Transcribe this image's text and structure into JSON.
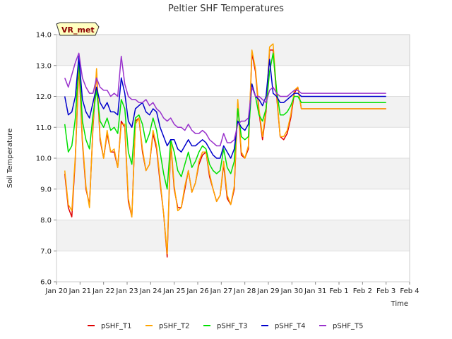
{
  "chart_data": {
    "type": "line",
    "title": "Peltier SHF Temperatures",
    "xlabel": "Time",
    "ylabel": "Soil Temperature",
    "badge": "VR_met",
    "ylim": [
      6.0,
      14.0
    ],
    "yticks": [
      "6.0",
      "7.0",
      "8.0",
      "9.0",
      "10.0",
      "11.0",
      "12.0",
      "13.0",
      "14.0"
    ],
    "xlim": [
      0,
      15
    ],
    "xticks": [
      "Jan 20",
      "Jan 21",
      "Jan 22",
      "Jan 23",
      "Jan 24",
      "Jan 25",
      "Jan 26",
      "Jan 27",
      "Jan 28",
      "Jan 29",
      "Jan 30",
      "Jan 31",
      "Feb 1",
      "Feb 2",
      "Feb 3",
      "Feb 4"
    ],
    "x": [
      0.35,
      0.5,
      0.65,
      0.8,
      0.95,
      1.1,
      1.25,
      1.4,
      1.55,
      1.7,
      1.85,
      2.0,
      2.15,
      2.3,
      2.45,
      2.6,
      2.75,
      2.9,
      3.05,
      3.2,
      3.35,
      3.5,
      3.65,
      3.8,
      3.95,
      4.1,
      4.25,
      4.4,
      4.55,
      4.7,
      4.85,
      5.0,
      5.15,
      5.3,
      5.45,
      5.6,
      5.75,
      5.9,
      6.05,
      6.2,
      6.35,
      6.5,
      6.65,
      6.8,
      6.95,
      7.1,
      7.25,
      7.4,
      7.55,
      7.7,
      7.85,
      8.0,
      8.15,
      8.3,
      8.45,
      8.6,
      8.75,
      8.9,
      9.05,
      9.2,
      9.35,
      9.5,
      9.65,
      9.8,
      9.95,
      10.1,
      10.25,
      10.4,
      10.55,
      10.7,
      10.85,
      11.0,
      11.15,
      11.3,
      11.45,
      11.6,
      11.75,
      11.9,
      12.05,
      12.2,
      12.35,
      12.5,
      12.65,
      12.8,
      12.95,
      13.1,
      13.25,
      13.4,
      13.55,
      13.7,
      13.85,
      14.0
    ],
    "series": [
      {
        "name": "pSHF_T1",
        "color": "#e00000",
        "values": [
          9.5,
          8.4,
          8.1,
          10.0,
          13.0,
          10.5,
          9.0,
          8.5,
          11.0,
          12.8,
          10.6,
          10.0,
          10.8,
          10.2,
          10.2,
          9.7,
          11.2,
          11.0,
          8.6,
          8.1,
          11.2,
          11.3,
          10.2,
          9.6,
          9.8,
          10.8,
          10.3,
          9.2,
          8.2,
          6.8,
          10.5,
          9.0,
          8.4,
          8.4,
          9.0,
          9.6,
          8.9,
          9.2,
          9.8,
          10.1,
          10.2,
          9.4,
          9.0,
          8.6,
          8.8,
          9.8,
          8.7,
          8.5,
          9.0,
          11.8,
          10.1,
          10.0,
          10.3,
          13.4,
          12.8,
          11.5,
          10.6,
          11.5,
          13.5,
          13.5,
          12.0,
          10.7,
          10.6,
          10.8,
          11.3,
          12.1,
          12.3,
          11.6,
          11.6,
          11.6,
          11.6,
          11.6,
          11.6,
          11.6,
          11.6,
          11.6,
          11.6,
          11.6,
          11.6,
          11.6,
          11.6,
          11.6,
          11.6,
          11.6,
          11.6,
          11.6,
          11.6,
          11.6,
          11.6,
          11.6,
          11.6,
          11.6
        ]
      },
      {
        "name": "pSHF_T2",
        "color": "#ffa500",
        "values": [
          9.6,
          8.5,
          8.3,
          10.1,
          13.1,
          10.6,
          9.1,
          8.4,
          11.1,
          12.9,
          10.7,
          10.0,
          10.9,
          10.2,
          10.3,
          9.7,
          11.1,
          11.1,
          8.7,
          8.1,
          11.1,
          11.3,
          10.3,
          9.6,
          9.8,
          10.9,
          10.4,
          9.3,
          8.2,
          6.9,
          10.6,
          9.1,
          8.3,
          8.4,
          9.1,
          9.6,
          8.9,
          9.2,
          9.9,
          10.2,
          10.2,
          9.5,
          9.0,
          8.6,
          8.8,
          9.9,
          8.8,
          8.5,
          9.1,
          11.9,
          10.2,
          10.0,
          10.4,
          13.5,
          12.9,
          11.6,
          10.7,
          11.6,
          13.6,
          13.7,
          12.1,
          10.7,
          10.7,
          10.9,
          11.4,
          12.2,
          12.3,
          11.6,
          11.6,
          11.6,
          11.6,
          11.6,
          11.6,
          11.6,
          11.6,
          11.6,
          11.6,
          11.6,
          11.6,
          11.6,
          11.6,
          11.6,
          11.6,
          11.6,
          11.6,
          11.6,
          11.6,
          11.6,
          11.6,
          11.6,
          11.6,
          11.6
        ]
      },
      {
        "name": "pSHF_T3",
        "color": "#00e000",
        "values": [
          11.1,
          10.2,
          10.4,
          11.3,
          13.2,
          11.2,
          10.6,
          10.3,
          11.4,
          12.2,
          11.2,
          11.0,
          11.3,
          10.9,
          11.0,
          10.8,
          11.9,
          11.6,
          10.2,
          9.8,
          11.3,
          11.4,
          11.1,
          10.5,
          10.8,
          11.3,
          10.9,
          10.2,
          9.5,
          9.0,
          10.6,
          10.2,
          9.6,
          9.4,
          9.8,
          10.2,
          9.7,
          9.9,
          10.2,
          10.4,
          10.3,
          9.8,
          9.6,
          9.5,
          9.6,
          10.3,
          9.7,
          9.5,
          9.9,
          11.6,
          10.7,
          10.6,
          10.7,
          12.4,
          12.0,
          11.4,
          11.2,
          11.6,
          12.8,
          13.4,
          12.2,
          11.4,
          11.4,
          11.5,
          11.7,
          12.0,
          12.0,
          11.8,
          11.8,
          11.8,
          11.8,
          11.8,
          11.8,
          11.8,
          11.8,
          11.8,
          11.8,
          11.8,
          11.8,
          11.8,
          11.8,
          11.8,
          11.8,
          11.8,
          11.8,
          11.8,
          11.8,
          11.8,
          11.8,
          11.8,
          11.8,
          11.8
        ]
      },
      {
        "name": "pSHF_T4",
        "color": "#0000cc",
        "values": [
          12.0,
          11.4,
          11.5,
          12.0,
          13.3,
          11.9,
          11.5,
          11.3,
          11.8,
          12.3,
          11.8,
          11.6,
          11.8,
          11.5,
          11.5,
          11.4,
          12.6,
          12.1,
          11.2,
          11.0,
          11.6,
          11.7,
          11.8,
          11.5,
          11.4,
          11.6,
          11.5,
          11.0,
          10.7,
          10.4,
          10.6,
          10.6,
          10.3,
          10.2,
          10.4,
          10.6,
          10.4,
          10.4,
          10.5,
          10.6,
          10.5,
          10.3,
          10.1,
          10.0,
          10.0,
          10.4,
          10.2,
          10.0,
          10.3,
          11.2,
          11.0,
          10.9,
          11.1,
          12.4,
          12.0,
          11.9,
          11.7,
          12.0,
          13.2,
          12.1,
          12.0,
          11.8,
          11.8,
          11.9,
          12.0,
          12.1,
          12.1,
          12.0,
          12.0,
          12.0,
          12.0,
          12.0,
          12.0,
          12.0,
          12.0,
          12.0,
          12.0,
          12.0,
          12.0,
          12.0,
          12.0,
          12.0,
          12.0,
          12.0,
          12.0,
          12.0,
          12.0,
          12.0,
          12.0,
          12.0,
          12.0,
          12.0
        ]
      },
      {
        "name": "pSHF_T5",
        "color": "#9932cc",
        "values": [
          12.6,
          12.3,
          12.7,
          13.1,
          13.4,
          12.6,
          12.3,
          12.1,
          12.1,
          12.6,
          12.3,
          12.2,
          12.2,
          12.0,
          12.1,
          12.0,
          13.3,
          12.4,
          12.0,
          11.9,
          11.9,
          11.8,
          11.8,
          11.9,
          11.7,
          11.8,
          11.6,
          11.5,
          11.3,
          11.2,
          11.3,
          11.1,
          11.0,
          11.0,
          10.9,
          11.1,
          10.9,
          10.8,
          10.8,
          10.9,
          10.8,
          10.6,
          10.5,
          10.4,
          10.4,
          10.8,
          10.5,
          10.5,
          10.6,
          11.1,
          11.2,
          11.2,
          11.3,
          12.3,
          12.0,
          12.0,
          11.9,
          11.8,
          12.2,
          12.3,
          12.1,
          12.0,
          12.0,
          12.0,
          12.1,
          12.2,
          12.2,
          12.1,
          12.1,
          12.1,
          12.1,
          12.1,
          12.1,
          12.1,
          12.1,
          12.1,
          12.1,
          12.1,
          12.1,
          12.1,
          12.1,
          12.1,
          12.1,
          12.1,
          12.1,
          12.1,
          12.1,
          12.1,
          12.1,
          12.1,
          12.1,
          12.1
        ]
      }
    ],
    "grid": true,
    "legend": "bottom"
  }
}
